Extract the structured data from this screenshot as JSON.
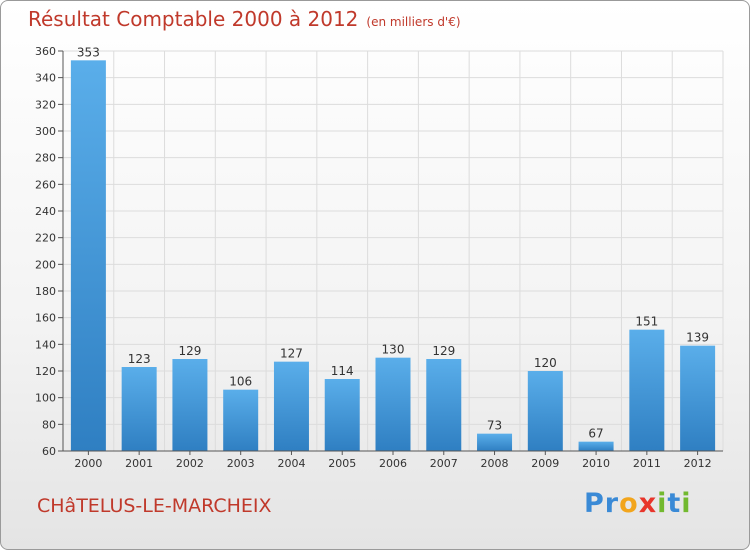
{
  "title": {
    "main": "Résultat Comptable 2000 à 2012",
    "unit": "(en milliers d'€)"
  },
  "commune": "CHâTELUS-LE-MARCHEIX",
  "logo": {
    "text": "Proxiti",
    "letters": [
      {
        "ch": "P",
        "color": "#3a8ad6"
      },
      {
        "ch": "r",
        "color": "#3a8ad6"
      },
      {
        "ch": "o",
        "color": "#f2a51c"
      },
      {
        "ch": "x",
        "color": "#e8352b"
      },
      {
        "ch": "i",
        "color": "#72b92f"
      },
      {
        "ch": "t",
        "color": "#3a8ad6"
      },
      {
        "ch": "i",
        "color": "#72b92f"
      }
    ]
  },
  "colors": {
    "bar_top": "#5aaeea",
    "bar_bottom": "#2f7fc2",
    "text_accent": "#c0392b"
  },
  "chart_data": {
    "type": "bar",
    "title": "Résultat Comptable 2000 à 2012",
    "xlabel": "",
    "ylabel": "(en milliers d'€)",
    "categories": [
      "2000",
      "2001",
      "2002",
      "2003",
      "2004",
      "2005",
      "2006",
      "2007",
      "2008",
      "2009",
      "2010",
      "2011",
      "2012"
    ],
    "values": [
      353,
      123,
      129,
      106,
      127,
      114,
      130,
      129,
      73,
      120,
      67,
      151,
      139
    ],
    "ylim": [
      60,
      360
    ],
    "yticks": [
      60,
      80,
      100,
      120,
      140,
      160,
      180,
      200,
      220,
      240,
      260,
      280,
      300,
      320,
      340,
      360
    ],
    "grid": true
  }
}
